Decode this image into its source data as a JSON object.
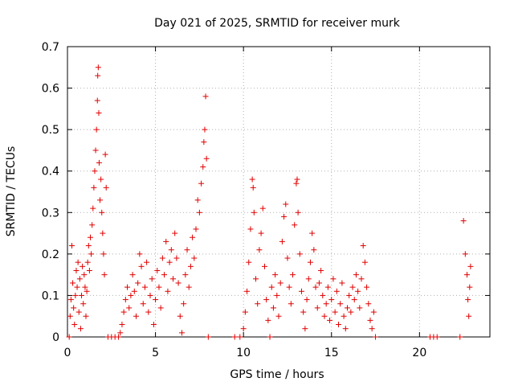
{
  "chart_data": {
    "type": "scatter",
    "title": "Day 021 of 2025, SRMTID for receiver murk",
    "xlabel": "GPS time / hours",
    "ylabel": "SRMTID / TECUs",
    "xlim": [
      0,
      24
    ],
    "ylim": [
      0,
      0.7
    ],
    "xticks": [
      0,
      5,
      10,
      15,
      20
    ],
    "yticks": [
      0,
      0.1,
      0.2,
      0.3,
      0.4,
      0.5,
      0.6,
      0.7
    ],
    "grid": true,
    "marker": "plus",
    "color": "#e00000",
    "series": [
      {
        "points": [
          [
            0.1,
            0.0
          ],
          [
            0.15,
            0.05
          ],
          [
            0.2,
            0.09
          ],
          [
            0.25,
            0.22
          ],
          [
            0.3,
            0.13
          ],
          [
            0.35,
            0.07
          ],
          [
            0.4,
            0.03
          ],
          [
            0.45,
            0.1
          ],
          [
            0.5,
            0.16
          ],
          [
            0.55,
            0.12
          ],
          [
            0.6,
            0.18
          ],
          [
            0.65,
            0.06
          ],
          [
            0.7,
            0.14
          ],
          [
            0.75,
            0.02
          ],
          [
            0.8,
            0.1
          ],
          [
            0.85,
            0.17
          ],
          [
            0.9,
            0.08
          ],
          [
            0.95,
            0.15
          ],
          [
            1.0,
            0.12
          ],
          [
            1.05,
            0.05
          ],
          [
            1.1,
            0.11
          ],
          [
            1.15,
            0.18
          ],
          [
            1.2,
            0.22
          ],
          [
            1.25,
            0.16
          ],
          [
            1.3,
            0.24
          ],
          [
            1.35,
            0.2
          ],
          [
            1.4,
            0.27
          ],
          [
            1.45,
            0.31
          ],
          [
            1.5,
            0.36
          ],
          [
            1.55,
            0.4
          ],
          [
            1.6,
            0.45
          ],
          [
            1.65,
            0.5
          ],
          [
            1.7,
            0.57
          ],
          [
            1.72,
            0.63
          ],
          [
            1.75,
            0.65
          ],
          [
            1.78,
            0.54
          ],
          [
            1.8,
            0.42
          ],
          [
            1.85,
            0.33
          ],
          [
            1.9,
            0.38
          ],
          [
            1.95,
            0.3
          ],
          [
            2.0,
            0.25
          ],
          [
            2.05,
            0.2
          ],
          [
            2.1,
            0.15
          ],
          [
            2.15,
            0.44
          ],
          [
            2.2,
            0.36
          ],
          [
            2.3,
            0.0
          ],
          [
            2.5,
            0.0
          ],
          [
            2.7,
            0.0
          ],
          [
            2.9,
            0.0
          ],
          [
            3.0,
            0.01
          ],
          [
            3.1,
            0.03
          ],
          [
            3.2,
            0.06
          ],
          [
            3.3,
            0.09
          ],
          [
            3.4,
            0.12
          ],
          [
            3.5,
            0.07
          ],
          [
            3.6,
            0.1
          ],
          [
            3.7,
            0.15
          ],
          [
            3.8,
            0.11
          ],
          [
            3.9,
            0.05
          ],
          [
            4.0,
            0.13
          ],
          [
            4.1,
            0.2
          ],
          [
            4.2,
            0.17
          ],
          [
            4.3,
            0.08
          ],
          [
            4.4,
            0.12
          ],
          [
            4.5,
            0.18
          ],
          [
            4.6,
            0.06
          ],
          [
            4.7,
            0.1
          ],
          [
            4.8,
            0.14
          ],
          [
            4.9,
            0.03
          ],
          [
            5.0,
            0.09
          ],
          [
            5.1,
            0.16
          ],
          [
            5.2,
            0.12
          ],
          [
            5.3,
            0.07
          ],
          [
            5.4,
            0.19
          ],
          [
            5.5,
            0.15
          ],
          [
            5.6,
            0.23
          ],
          [
            5.7,
            0.11
          ],
          [
            5.8,
            0.18
          ],
          [
            5.9,
            0.21
          ],
          [
            6.0,
            0.14
          ],
          [
            6.1,
            0.25
          ],
          [
            6.2,
            0.19
          ],
          [
            6.3,
            0.13
          ],
          [
            6.4,
            0.05
          ],
          [
            6.5,
            0.01
          ],
          [
            6.6,
            0.08
          ],
          [
            6.7,
            0.15
          ],
          [
            6.8,
            0.21
          ],
          [
            6.9,
            0.12
          ],
          [
            7.0,
            0.17
          ],
          [
            7.1,
            0.24
          ],
          [
            7.2,
            0.19
          ],
          [
            7.3,
            0.26
          ],
          [
            7.4,
            0.33
          ],
          [
            7.5,
            0.3
          ],
          [
            7.6,
            0.37
          ],
          [
            7.7,
            0.41
          ],
          [
            7.75,
            0.47
          ],
          [
            7.8,
            0.5
          ],
          [
            7.85,
            0.58
          ],
          [
            7.9,
            0.43
          ],
          [
            8.0,
            0.0
          ],
          [
            9.5,
            0.0
          ],
          [
            9.8,
            0.0
          ],
          [
            10.0,
            0.02
          ],
          [
            10.1,
            0.06
          ],
          [
            10.2,
            0.11
          ],
          [
            10.3,
            0.18
          ],
          [
            10.4,
            0.26
          ],
          [
            10.5,
            0.38
          ],
          [
            10.55,
            0.36
          ],
          [
            10.6,
            0.3
          ],
          [
            10.7,
            0.14
          ],
          [
            10.8,
            0.08
          ],
          [
            10.9,
            0.21
          ],
          [
            11.0,
            0.25
          ],
          [
            11.1,
            0.31
          ],
          [
            11.2,
            0.17
          ],
          [
            11.3,
            0.09
          ],
          [
            11.4,
            0.04
          ],
          [
            11.5,
            0.0
          ],
          [
            11.6,
            0.12
          ],
          [
            11.7,
            0.07
          ],
          [
            11.8,
            0.15
          ],
          [
            11.9,
            0.1
          ],
          [
            12.0,
            0.05
          ],
          [
            12.1,
            0.13
          ],
          [
            12.2,
            0.23
          ],
          [
            12.3,
            0.29
          ],
          [
            12.4,
            0.32
          ],
          [
            12.5,
            0.19
          ],
          [
            12.6,
            0.12
          ],
          [
            12.7,
            0.08
          ],
          [
            12.8,
            0.15
          ],
          [
            12.9,
            0.27
          ],
          [
            13.0,
            0.37
          ],
          [
            13.05,
            0.38
          ],
          [
            13.1,
            0.3
          ],
          [
            13.2,
            0.2
          ],
          [
            13.3,
            0.11
          ],
          [
            13.4,
            0.06
          ],
          [
            13.5,
            0.02
          ],
          [
            13.6,
            0.09
          ],
          [
            13.7,
            0.14
          ],
          [
            13.8,
            0.18
          ],
          [
            13.9,
            0.25
          ],
          [
            14.0,
            0.21
          ],
          [
            14.1,
            0.12
          ],
          [
            14.2,
            0.07
          ],
          [
            14.3,
            0.13
          ],
          [
            14.4,
            0.16
          ],
          [
            14.5,
            0.1
          ],
          [
            14.6,
            0.05
          ],
          [
            14.7,
            0.08
          ],
          [
            14.8,
            0.12
          ],
          [
            14.9,
            0.04
          ],
          [
            15.0,
            0.09
          ],
          [
            15.1,
            0.14
          ],
          [
            15.2,
            0.06
          ],
          [
            15.3,
            0.11
          ],
          [
            15.4,
            0.03
          ],
          [
            15.5,
            0.08
          ],
          [
            15.6,
            0.13
          ],
          [
            15.7,
            0.05
          ],
          [
            15.8,
            0.02
          ],
          [
            15.9,
            0.07
          ],
          [
            16.0,
            0.1
          ],
          [
            16.1,
            0.06
          ],
          [
            16.2,
            0.12
          ],
          [
            16.3,
            0.09
          ],
          [
            16.4,
            0.15
          ],
          [
            16.5,
            0.11
          ],
          [
            16.6,
            0.07
          ],
          [
            16.7,
            0.14
          ],
          [
            16.8,
            0.22
          ],
          [
            16.9,
            0.18
          ],
          [
            17.0,
            0.12
          ],
          [
            17.1,
            0.08
          ],
          [
            17.2,
            0.04
          ],
          [
            17.3,
            0.02
          ],
          [
            17.4,
            0.06
          ],
          [
            17.5,
            0.0
          ],
          [
            20.6,
            0.0
          ],
          [
            20.8,
            0.0
          ],
          [
            21.0,
            0.0
          ],
          [
            22.3,
            0.0
          ],
          [
            22.5,
            0.28
          ],
          [
            22.6,
            0.2
          ],
          [
            22.7,
            0.15
          ],
          [
            22.75,
            0.09
          ],
          [
            22.8,
            0.05
          ],
          [
            22.85,
            0.12
          ],
          [
            22.9,
            0.17
          ]
        ]
      }
    ]
  }
}
